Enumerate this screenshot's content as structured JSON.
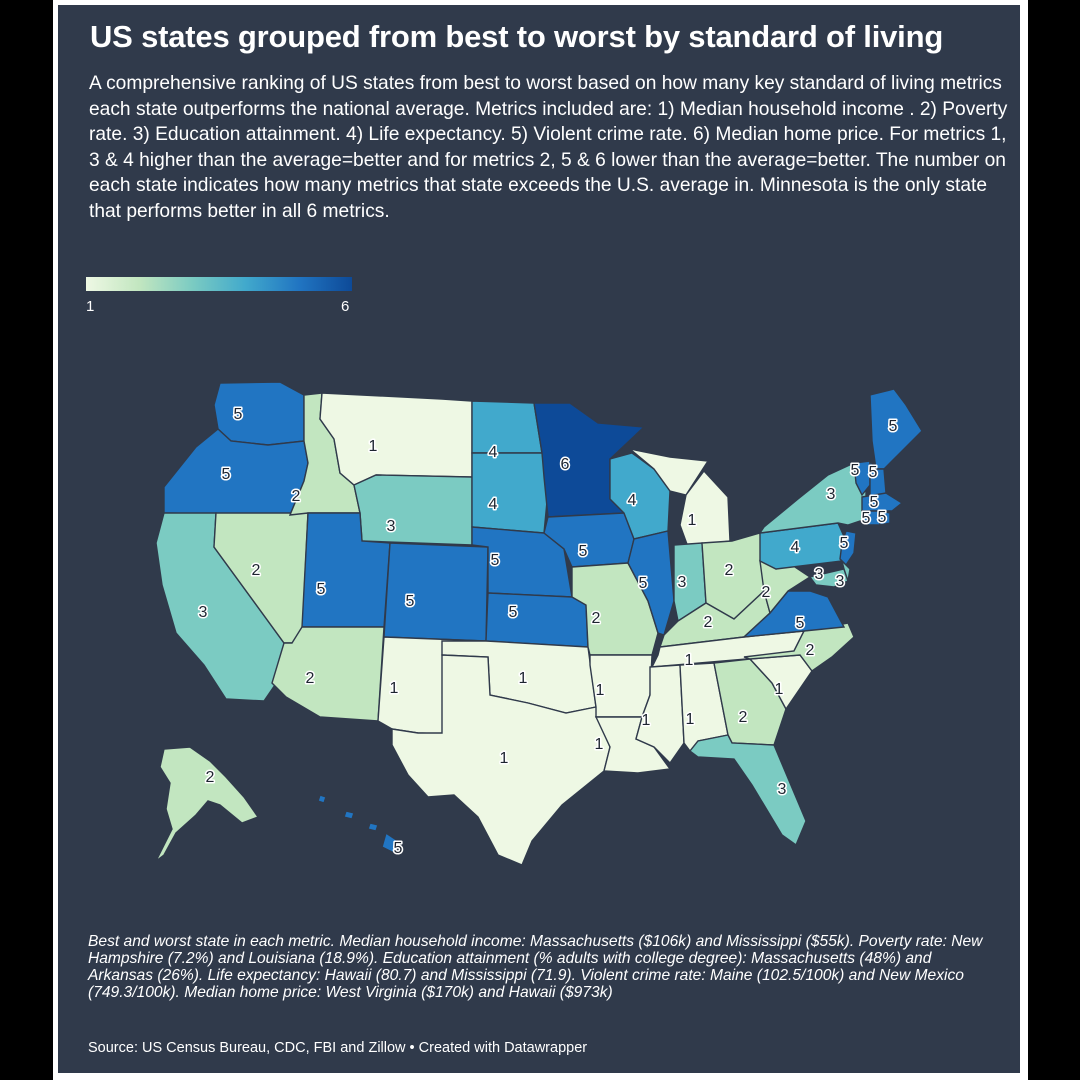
{
  "title": "US states grouped from best to worst by standard of living",
  "description": "A comprehensive ranking of US states from best to worst based on how many key standard of living metrics each state outperforms the national average. Metrics included are: 1) Median household income . 2) Poverty rate. 3) Education attainment. 4) Life expectancy. 5) Violent crime rate. 6) Median home price. For metrics 1, 3 & 4 higher than the average=better and for metrics 2, 5 & 6 lower than the average=better. The number on each state indicates how many metrics that state exceeds the U.S. average in. Minnesota is the only state that performs better in all 6 metrics.",
  "legend": {
    "min_label": "1",
    "max_label": "6",
    "min": 1,
    "max": 6
  },
  "colors": {
    "1": "#eef8e4",
    "2": "#c2e6c0",
    "3": "#7bcbc2",
    "4": "#41a9cc",
    "5": "#2175c2",
    "6": "#0d4a98",
    "background": "#303a4b"
  },
  "states": [
    {
      "name": "Washington",
      "value": 5
    },
    {
      "name": "Oregon",
      "value": 5
    },
    {
      "name": "California",
      "value": 3
    },
    {
      "name": "Nevada",
      "value": 2
    },
    {
      "name": "Idaho",
      "value": 2
    },
    {
      "name": "Montana",
      "value": 1
    },
    {
      "name": "Wyoming",
      "value": 3
    },
    {
      "name": "Utah",
      "value": 5
    },
    {
      "name": "Arizona",
      "value": 2
    },
    {
      "name": "Colorado",
      "value": 5
    },
    {
      "name": "New Mexico",
      "value": 1
    },
    {
      "name": "North Dakota",
      "value": 4
    },
    {
      "name": "South Dakota",
      "value": 4
    },
    {
      "name": "Nebraska",
      "value": 5
    },
    {
      "name": "Kansas",
      "value": 5
    },
    {
      "name": "Oklahoma",
      "value": 1
    },
    {
      "name": "Texas",
      "value": 1
    },
    {
      "name": "Minnesota",
      "value": 6
    },
    {
      "name": "Iowa",
      "value": 5
    },
    {
      "name": "Missouri",
      "value": 2
    },
    {
      "name": "Arkansas",
      "value": 1
    },
    {
      "name": "Louisiana",
      "value": 1
    },
    {
      "name": "Wisconsin",
      "value": 4
    },
    {
      "name": "Illinois",
      "value": 5
    },
    {
      "name": "Michigan",
      "value": 1
    },
    {
      "name": "Indiana",
      "value": 3
    },
    {
      "name": "Ohio",
      "value": 2
    },
    {
      "name": "Kentucky",
      "value": 2
    },
    {
      "name": "Tennessee",
      "value": 1
    },
    {
      "name": "Mississippi",
      "value": 1
    },
    {
      "name": "Alabama",
      "value": 1
    },
    {
      "name": "Georgia",
      "value": 2
    },
    {
      "name": "Florida",
      "value": 3
    },
    {
      "name": "South Carolina",
      "value": 1
    },
    {
      "name": "North Carolina",
      "value": 2
    },
    {
      "name": "Virginia",
      "value": 5
    },
    {
      "name": "West Virginia",
      "value": 2
    },
    {
      "name": "Pennsylvania",
      "value": 4
    },
    {
      "name": "New York",
      "value": 3
    },
    {
      "name": "Maine",
      "value": 5
    },
    {
      "name": "Vermont",
      "value": 5
    },
    {
      "name": "New Hampshire",
      "value": 5
    },
    {
      "name": "Massachusetts",
      "value": 5
    },
    {
      "name": "Connecticut",
      "value": 5
    },
    {
      "name": "Rhode Island",
      "value": 5
    },
    {
      "name": "New Jersey",
      "value": 5
    },
    {
      "name": "Maryland",
      "value": 3
    },
    {
      "name": "Delaware",
      "value": 3
    },
    {
      "name": "Alaska",
      "value": 2
    },
    {
      "name": "Hawaii",
      "value": 5
    }
  ],
  "footnote": "Best and worst state in each metric. Median household income: Massachusetts ($106k) and Mississippi ($55k). Poverty rate: New Hampshire (7.2%) and Louisiana (18.9%). Education attainment (% adults with college degree): Massachusetts (48%) and Arkansas (26%). Life expectancy: Hawaii (80.7) and Mississippi (71.9). Violent crime rate: Maine (102.5/100k) and New Mexico (749.3/100k). Median home price: West Virginia ($170k) and Hawaii ($973k)",
  "source": "Source: US Census Bureau, CDC, FBI and Zillow • Created with Datawrapper"
}
